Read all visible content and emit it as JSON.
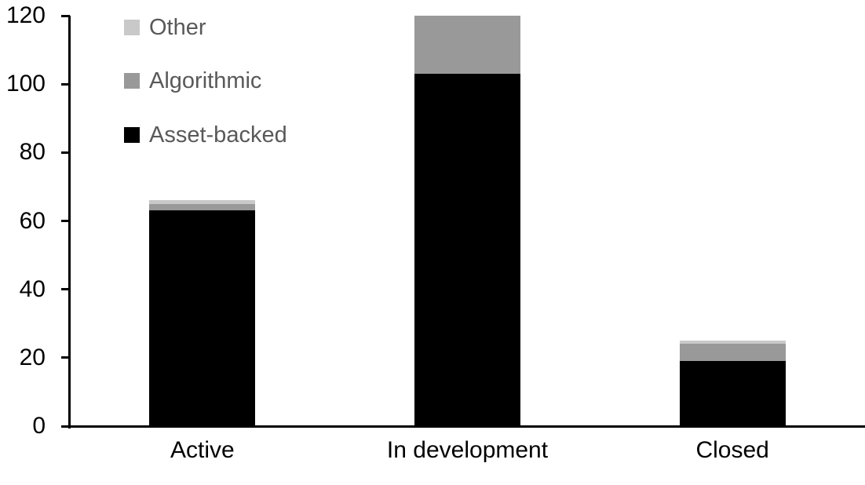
{
  "chart_data": {
    "type": "bar",
    "stacked": true,
    "title": "",
    "xlabel": "",
    "ylabel": "",
    "categories": [
      "Active",
      "In development",
      "Closed"
    ],
    "series": [
      {
        "name": "Asset-backed",
        "color": "#000000",
        "values": [
          63,
          103,
          19
        ]
      },
      {
        "name": "Algorithmic",
        "color": "#999999",
        "values": [
          2,
          17,
          5
        ]
      },
      {
        "name": "Other",
        "color": "#c9c9c9",
        "values": [
          1,
          0,
          1
        ]
      }
    ],
    "totals": [
      66,
      120,
      25
    ],
    "ylim": [
      0,
      120
    ],
    "yticks": [
      0,
      20,
      40,
      60,
      80,
      100,
      120
    ],
    "grid": false,
    "legend_position": "top-left-inside",
    "legend_order": [
      "Other",
      "Algorithmic",
      "Asset-backed"
    ],
    "axis_color": "#000000",
    "tick_label_color": "#000000",
    "legend_text_color": "#595959",
    "background_color": "#ffffff"
  }
}
